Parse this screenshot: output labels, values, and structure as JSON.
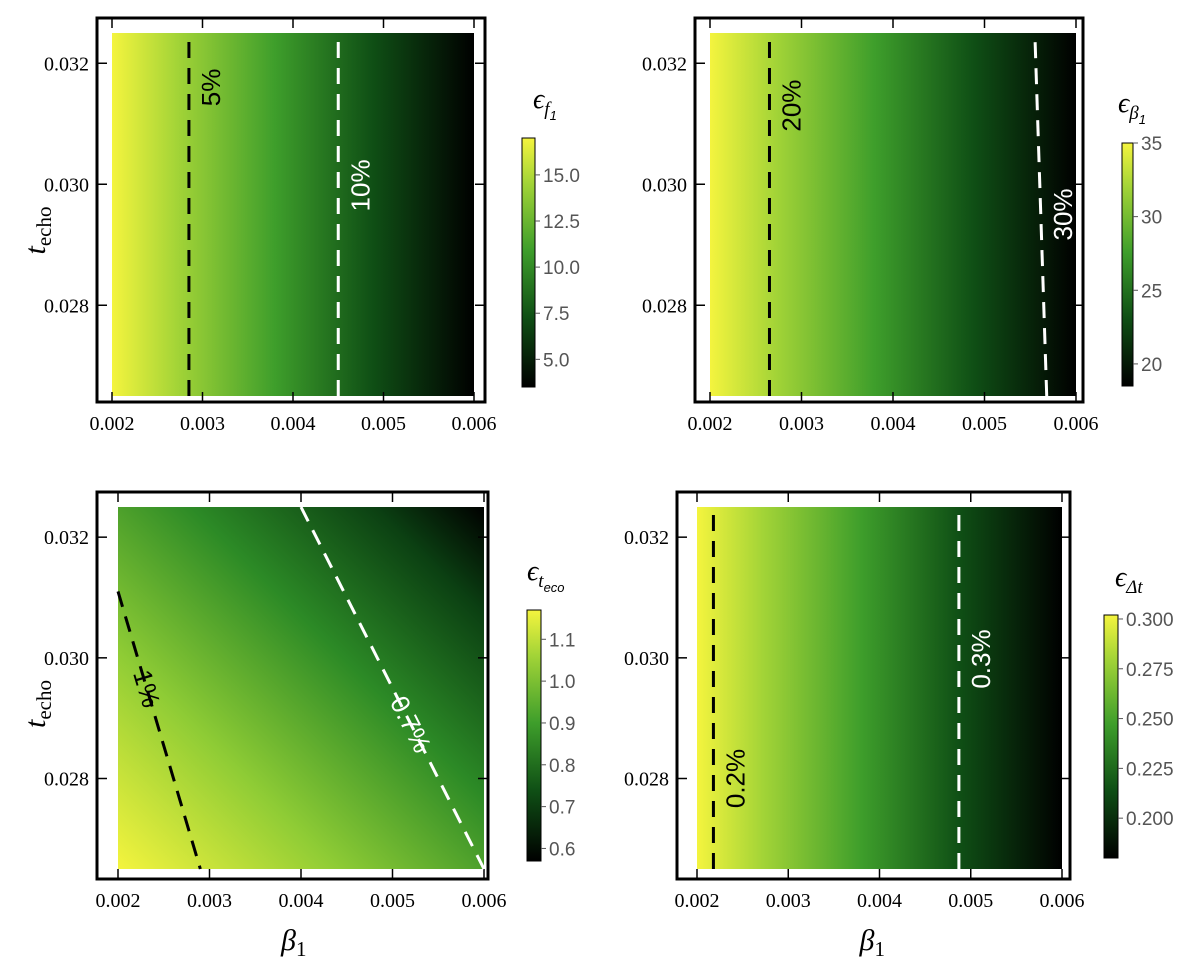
{
  "chart_data": [
    {
      "type": "heatmap",
      "id": "ef1",
      "xlabel": "",
      "ylabel": "t",
      "ylabel_sub": "echo",
      "xlim": [
        0.002,
        0.006
      ],
      "ylim": [
        0.0265,
        0.0325
      ],
      "xticks": [
        "0.002",
        "0.003",
        "0.004",
        "0.005",
        "0.006"
      ],
      "yticks": [
        "0.028",
        "0.030",
        "0.032"
      ],
      "colorbar": {
        "symbol": "ϵ",
        "sub": "f",
        "subsub": "1",
        "range": [
          3.5,
          17
        ],
        "ticks": [
          "5.0",
          "7.5",
          "10.0",
          "12.5",
          "15.0"
        ]
      },
      "gradient": "horizontal",
      "contours": [
        {
          "label": "5%",
          "color": "#000000",
          "points": [
            [
              0.00285,
              0.0265
            ],
            [
              0.00285,
              0.0325
            ]
          ]
        },
        {
          "label": "10%",
          "color": "#ffffff",
          "points": [
            [
              0.0045,
              0.0265
            ],
            [
              0.0045,
              0.0325
            ]
          ]
        }
      ]
    },
    {
      "type": "heatmap",
      "id": "eb1",
      "xlabel": "",
      "ylabel": "",
      "xlim": [
        0.002,
        0.006
      ],
      "ylim": [
        0.0265,
        0.0325
      ],
      "xticks": [
        "0.002",
        "0.003",
        "0.004",
        "0.005",
        "0.006"
      ],
      "yticks": [
        "0.028",
        "0.030",
        "0.032"
      ],
      "colorbar": {
        "symbol": "ϵ",
        "sub": "β",
        "subsub": "1",
        "range": [
          18.5,
          35
        ],
        "ticks": [
          "20",
          "25",
          "30",
          "35"
        ]
      },
      "gradient": "horizontal",
      "contours": [
        {
          "label": "20%",
          "color": "#000000",
          "points": [
            [
              0.00265,
              0.0265
            ],
            [
              0.00265,
              0.0325
            ]
          ]
        },
        {
          "label": "30%",
          "color": "#ffffff",
          "points": [
            [
              0.00568,
              0.0265
            ],
            [
              0.00555,
              0.0325
            ]
          ]
        }
      ]
    },
    {
      "type": "heatmap",
      "id": "eteco",
      "xlabel": "β",
      "xlabel_sub": "1",
      "ylabel": "t",
      "ylabel_sub": "echo",
      "xlim": [
        0.002,
        0.006
      ],
      "ylim": [
        0.0265,
        0.0325
      ],
      "xticks": [
        "0.002",
        "0.003",
        "0.004",
        "0.005",
        "0.006"
      ],
      "yticks": [
        "0.028",
        "0.030",
        "0.032"
      ],
      "colorbar": {
        "symbol": "ϵ",
        "sub": "t",
        "subsub": "eco",
        "range": [
          0.57,
          1.17
        ],
        "ticks": [
          "0.6",
          "0.7",
          "0.8",
          "0.9",
          "1.0",
          "1.1"
        ]
      },
      "gradient": "diagonal",
      "contours": [
        {
          "label": "1%",
          "color": "#000000",
          "points": [
            [
              0.002,
              0.0311
            ],
            [
              0.0029,
              0.0265
            ]
          ]
        },
        {
          "label": "0.7%",
          "color": "#ffffff",
          "points": [
            [
              0.004,
              0.0325
            ],
            [
              0.006,
              0.0265
            ]
          ]
        }
      ]
    },
    {
      "type": "heatmap",
      "id": "edt",
      "xlabel": "β",
      "xlabel_sub": "1",
      "ylabel": "",
      "xlim": [
        0.002,
        0.006
      ],
      "ylim": [
        0.0265,
        0.0325
      ],
      "xticks": [
        "0.002",
        "0.003",
        "0.004",
        "0.005",
        "0.006"
      ],
      "yticks": [
        "0.028",
        "0.030",
        "0.032"
      ],
      "colorbar": {
        "symbol": "ϵ",
        "sub": "Δt",
        "subsub": "",
        "range": [
          0.18,
          0.302
        ],
        "ticks": [
          "0.200",
          "0.225",
          "0.250",
          "0.275",
          "0.300"
        ]
      },
      "gradient": "horizontal",
      "contours": [
        {
          "label": "0.2%",
          "color": "#000000",
          "points": [
            [
              0.00218,
              0.0265
            ],
            [
              0.00218,
              0.0325
            ]
          ]
        },
        {
          "label": "0.3%",
          "color": "#ffffff",
          "points": [
            [
              0.00487,
              0.0265
            ],
            [
              0.00487,
              0.0325
            ]
          ]
        }
      ]
    }
  ]
}
